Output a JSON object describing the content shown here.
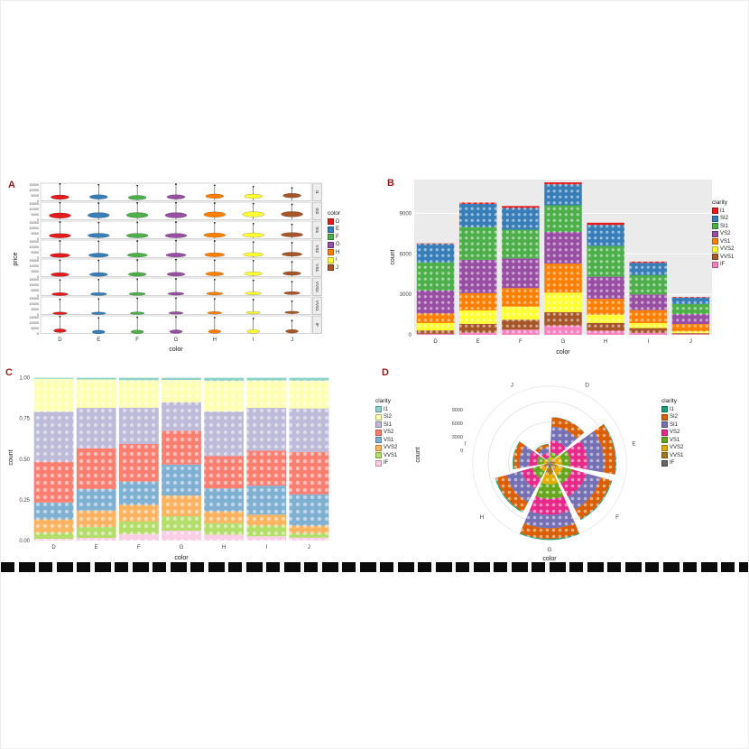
{
  "ui": {
    "panel_a_label": "A",
    "panel_b_label": "B",
    "panel_c_label": "C",
    "panel_d_label": "D"
  },
  "chart_data": [
    {
      "id": "A",
      "type": "violin",
      "xlabel": "color",
      "ylabel": "price",
      "categories": [
        "D",
        "E",
        "F",
        "G",
        "H",
        "I",
        "J"
      ],
      "category_colors": {
        "D": "#E41A1C",
        "E": "#377EB8",
        "F": "#4DAF4A",
        "G": "#984EA3",
        "H": "#FF7F00",
        "I": "#FFFF33",
        "J": "#A65628"
      },
      "facets": [
        "I1",
        "SI2",
        "SI1",
        "VS2",
        "VS1",
        "VVS2",
        "VVS1",
        "IF"
      ],
      "y_ticks": [
        0,
        5000,
        10000,
        15000
      ],
      "ymax": 16500,
      "legend": {
        "title": "color"
      },
      "violins": [
        {
          "facet": "I1",
          "center": [
            3400,
            3600,
            3000,
            3600,
            4300,
            4200,
            4900
          ],
          "tail": [
            15800,
            15000,
            14200,
            15500,
            14500,
            13200,
            12000
          ],
          "spread": 2100,
          "halfwidth": 10
        },
        {
          "facet": "SI2",
          "center": [
            3900,
            4200,
            4300,
            4200,
            4900,
            5100,
            5200
          ],
          "tail": [
            15900,
            15600,
            15800,
            15900,
            15600,
            15100,
            14500
          ],
          "spread": 2500,
          "halfwidth": 12
        },
        {
          "facet": "SI1",
          "center": [
            2800,
            3000,
            2900,
            2900,
            3300,
            3400,
            3700
          ],
          "tail": [
            15600,
            15100,
            15300,
            15600,
            14900,
            14100,
            13400
          ],
          "spread": 2100,
          "halfwidth": 12
        },
        {
          "facet": "VS2",
          "center": [
            2100,
            2300,
            2400,
            2400,
            2700,
            2900,
            3200
          ],
          "tail": [
            15600,
            15300,
            15600,
            15900,
            15600,
            14600,
            14000
          ],
          "spread": 1900,
          "halfwidth": 11
        },
        {
          "facet": "VS1",
          "center": [
            1900,
            2000,
            2100,
            2200,
            2500,
            2700,
            3000
          ],
          "tail": [
            15300,
            15100,
            15600,
            15900,
            15300,
            14900,
            13800
          ],
          "spread": 1800,
          "halfwidth": 10
        },
        {
          "facet": "VVS2",
          "center": [
            1300,
            1400,
            1500,
            1700,
            1800,
            2000,
            2300
          ],
          "tail": [
            14600,
            14900,
            15300,
            15600,
            14900,
            14300,
            13000
          ],
          "spread": 1400,
          "halfwidth": 9
        },
        {
          "facet": "VVS1",
          "center": [
            1100,
            1100,
            1200,
            1400,
            1500,
            1700,
            1900
          ],
          "tail": [
            14100,
            14600,
            15100,
            15300,
            14600,
            13900,
            12500
          ],
          "spread": 1200,
          "halfwidth": 8
        },
        {
          "facet": "IF",
          "center": [
            2600,
            1400,
            1500,
            1700,
            1800,
            1900,
            2000
          ],
          "tail": [
            15900,
            14600,
            15100,
            15600,
            14900,
            14100,
            12000
          ],
          "spread": 1700,
          "halfwidth": 7
        }
      ]
    },
    {
      "id": "B",
      "type": "bar",
      "stack": "count",
      "xlabel": "color",
      "ylabel": "count",
      "categories": [
        "D",
        "E",
        "F",
        "G",
        "H",
        "I",
        "J"
      ],
      "y_ticks": [
        0,
        3000,
        6000,
        9000
      ],
      "ymax": 11500,
      "legend": {
        "title": "clarity"
      },
      "series": [
        {
          "name": "I1",
          "color": "#E41A1C",
          "values": [
            42,
            102,
            143,
            150,
            162,
            92,
            50
          ]
        },
        {
          "name": "SI2",
          "color": "#377EB8",
          "values": [
            1370,
            1713,
            1609,
            1548,
            1563,
            912,
            479
          ]
        },
        {
          "name": "SI1",
          "color": "#4DAF4A",
          "values": [
            2083,
            2426,
            2131,
            1976,
            2275,
            1424,
            750
          ]
        },
        {
          "name": "VS2",
          "color": "#984EA3",
          "values": [
            1697,
            2470,
            2201,
            2347,
            1643,
            1169,
            731
          ]
        },
        {
          "name": "VS1",
          "color": "#FF7F00",
          "values": [
            705,
            1281,
            1364,
            2148,
            1169,
            962,
            542
          ]
        },
        {
          "name": "VVS2",
          "color": "#FFFF33",
          "values": [
            553,
            991,
            975,
            1443,
            608,
            365,
            131
          ]
        },
        {
          "name": "VVS1",
          "color": "#A65628",
          "values": [
            252,
            656,
            734,
            999,
            585,
            355,
            74
          ]
        },
        {
          "name": "IF",
          "color": "#F781BF",
          "values": [
            73,
            158,
            385,
            681,
            299,
            143,
            51
          ]
        }
      ]
    },
    {
      "id": "C",
      "type": "bar",
      "stack": "fill",
      "xlabel": "color",
      "ylabel": "count",
      "categories": [
        "D",
        "E",
        "F",
        "G",
        "H",
        "I",
        "J"
      ],
      "y_ticks": [
        0,
        0.25,
        0.5,
        0.75,
        1
      ],
      "y_tick_labels": [
        "0.00",
        "0.25",
        "0.50",
        "0.75",
        "1.00"
      ],
      "legend": {
        "title": "clarity"
      },
      "series": [
        {
          "name": "I1",
          "color": "#8DD3C7",
          "values": [
            42,
            102,
            143,
            150,
            162,
            92,
            50
          ]
        },
        {
          "name": "SI2",
          "color": "#FFFFB3",
          "values": [
            1370,
            1713,
            1609,
            1548,
            1563,
            912,
            479
          ]
        },
        {
          "name": "SI1",
          "color": "#BEBADA",
          "values": [
            2083,
            2426,
            2131,
            1976,
            2275,
            1424,
            750
          ]
        },
        {
          "name": "VS2",
          "color": "#FB8072",
          "values": [
            1697,
            2470,
            2201,
            2347,
            1643,
            1169,
            731
          ]
        },
        {
          "name": "VS1",
          "color": "#80B1D3",
          "values": [
            705,
            1281,
            1364,
            2148,
            1169,
            962,
            542
          ]
        },
        {
          "name": "VVS2",
          "color": "#FDB462",
          "values": [
            553,
            991,
            975,
            1443,
            608,
            365,
            131
          ]
        },
        {
          "name": "VVS1",
          "color": "#B3DE69",
          "values": [
            252,
            656,
            734,
            999,
            585,
            355,
            74
          ]
        },
        {
          "name": "IF",
          "color": "#FCCDE5",
          "values": [
            73,
            158,
            385,
            681,
            299,
            143,
            51
          ]
        }
      ]
    },
    {
      "id": "D",
      "type": "polar",
      "xlabel": "color",
      "ylabel": "count",
      "categories": [
        "D",
        "E",
        "F",
        "G",
        "H",
        "I",
        "J"
      ],
      "y_ticks": [
        0,
        3000,
        6000,
        9000
      ],
      "rmax": 11292,
      "legend": {
        "title": "clarity"
      },
      "series": [
        {
          "name": "I1",
          "color": "#1B9E77",
          "values": [
            42,
            102,
            143,
            150,
            162,
            92,
            50
          ]
        },
        {
          "name": "SI2",
          "color": "#D95F02",
          "values": [
            1370,
            1713,
            1609,
            1548,
            1563,
            912,
            479
          ]
        },
        {
          "name": "SI1",
          "color": "#7570B3",
          "values": [
            2083,
            2426,
            2131,
            1976,
            2275,
            1424,
            750
          ]
        },
        {
          "name": "VS2",
          "color": "#E7298A",
          "values": [
            1697,
            2470,
            2201,
            2347,
            1643,
            1169,
            731
          ]
        },
        {
          "name": "VS1",
          "color": "#66A61E",
          "values": [
            705,
            1281,
            1364,
            2148,
            1169,
            962,
            542
          ]
        },
        {
          "name": "VVS2",
          "color": "#E6AB02",
          "values": [
            553,
            991,
            975,
            1443,
            608,
            365,
            131
          ]
        },
        {
          "name": "VVS1",
          "color": "#A6761D",
          "values": [
            252,
            656,
            734,
            999,
            585,
            355,
            74
          ]
        },
        {
          "name": "IF",
          "color": "#666666",
          "values": [
            73,
            158,
            385,
            681,
            299,
            143,
            51
          ]
        }
      ]
    }
  ]
}
